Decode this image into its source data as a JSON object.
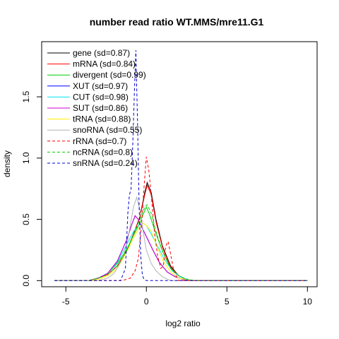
{
  "chart_data": {
    "type": "line",
    "title": "number read ratio WT.MMS/mre11.G1",
    "xlabel": "log2 ratio",
    "ylabel": "density",
    "xlim": [
      -6.5,
      10.6
    ],
    "ylim": [
      -0.05,
      1.95
    ],
    "xticks": [
      -5,
      0,
      5,
      10
    ],
    "yticks": [
      0.0,
      0.5,
      1.0,
      1.5
    ],
    "grid": false,
    "legend_position": "top-left",
    "series": [
      {
        "name": "gene (sd=0.87)",
        "color": "#000000",
        "dash": "solid",
        "x": [
          -5.7,
          -3.6,
          -3.0,
          -2.4,
          -1.8,
          -1.2,
          -0.8,
          -0.4,
          -0.1,
          0.05,
          0.3,
          0.6,
          1.0,
          1.5,
          2.0,
          2.5,
          3.0,
          10.0
        ],
        "y": [
          0.0,
          0.0,
          0.02,
          0.05,
          0.12,
          0.25,
          0.38,
          0.52,
          0.72,
          0.8,
          0.72,
          0.5,
          0.28,
          0.12,
          0.04,
          0.01,
          0.0,
          0.0
        ]
      },
      {
        "name": "mRNA (sd=0.84)",
        "color": "#ff0000",
        "dash": "solid",
        "x": [
          -5.7,
          -3.6,
          -3.0,
          -2.4,
          -1.8,
          -1.2,
          -0.8,
          -0.4,
          -0.1,
          0.05,
          0.3,
          0.6,
          1.0,
          1.5,
          2.0,
          2.5,
          3.0,
          10.0
        ],
        "y": [
          0.0,
          0.0,
          0.02,
          0.05,
          0.12,
          0.25,
          0.38,
          0.52,
          0.7,
          0.78,
          0.7,
          0.48,
          0.27,
          0.11,
          0.04,
          0.01,
          0.0,
          0.0
        ]
      },
      {
        "name": "divergent (sd=0.99)",
        "color": "#00cd00",
        "dash": "solid",
        "x": [
          -5.7,
          -3.6,
          -3.0,
          -2.4,
          -1.8,
          -1.2,
          -0.8,
          -0.4,
          -0.2,
          0.0,
          0.2,
          0.5,
          1.0,
          1.5,
          2.0,
          2.5,
          3.0,
          10.0
        ],
        "y": [
          0.0,
          0.0,
          0.02,
          0.06,
          0.14,
          0.26,
          0.37,
          0.47,
          0.54,
          0.6,
          0.54,
          0.42,
          0.24,
          0.1,
          0.04,
          0.01,
          0.0,
          0.0
        ]
      },
      {
        "name": "XUT (sd=0.97)",
        "color": "#0000ff",
        "dash": "solid",
        "x": [
          -5.7,
          -3.6,
          -3.0,
          -2.4,
          -1.8,
          -1.2,
          -0.9,
          -0.7,
          -0.5,
          -0.3,
          0.0,
          0.4,
          0.8,
          1.3,
          1.8,
          2.3,
          2.8,
          10.0
        ],
        "y": [
          0.0,
          0.0,
          0.02,
          0.06,
          0.16,
          0.34,
          0.46,
          0.53,
          0.5,
          0.44,
          0.36,
          0.25,
          0.15,
          0.07,
          0.03,
          0.01,
          0.0,
          0.0
        ]
      },
      {
        "name": "CUT (sd=0.98)",
        "color": "#00e5ee",
        "dash": "solid",
        "x": [
          -5.7,
          -3.6,
          -3.0,
          -2.4,
          -1.8,
          -1.2,
          -0.8,
          -0.5,
          -0.2,
          0.0,
          0.3,
          0.7,
          1.1,
          1.6,
          2.1,
          2.6,
          3.0,
          10.0
        ],
        "y": [
          0.0,
          0.0,
          0.02,
          0.06,
          0.15,
          0.3,
          0.4,
          0.45,
          0.47,
          0.45,
          0.38,
          0.28,
          0.18,
          0.08,
          0.03,
          0.01,
          0.0,
          0.0
        ]
      },
      {
        "name": "SUT (sd=0.86)",
        "color": "#cc00cc",
        "dash": "solid",
        "x": [
          -5.7,
          -3.6,
          -3.0,
          -2.4,
          -1.8,
          -1.2,
          -0.9,
          -0.7,
          -0.5,
          -0.3,
          0.0,
          0.4,
          0.8,
          1.3,
          1.8,
          2.3,
          2.8,
          10.0
        ],
        "y": [
          0.0,
          0.0,
          0.02,
          0.06,
          0.16,
          0.34,
          0.46,
          0.53,
          0.5,
          0.44,
          0.36,
          0.25,
          0.15,
          0.07,
          0.03,
          0.01,
          0.0,
          0.0
        ]
      },
      {
        "name": "tRNA (sd=0.88)",
        "color": "#ffee00",
        "dash": "solid",
        "x": [
          -5.7,
          -3.6,
          -3.0,
          -2.4,
          -1.8,
          -1.2,
          -0.8,
          -0.5,
          -0.2,
          0.0,
          0.3,
          0.6,
          1.0,
          1.5,
          2.0,
          2.5,
          3.0,
          10.0
        ],
        "y": [
          0.0,
          0.0,
          0.01,
          0.04,
          0.1,
          0.24,
          0.35,
          0.42,
          0.47,
          0.45,
          0.4,
          0.3,
          0.17,
          0.07,
          0.02,
          0.01,
          0.0,
          0.0
        ]
      },
      {
        "name": "snoRNA (sd=0.55)",
        "color": "#b3b3b3",
        "dash": "solid",
        "x": [
          -5.7,
          -3.0,
          -2.4,
          -2.0,
          -1.6,
          -1.4,
          -1.2,
          -1.0,
          -0.8,
          -0.6,
          -0.4,
          -0.2,
          0.0,
          0.3,
          0.6,
          1.0,
          1.5,
          10.0
        ],
        "y": [
          0.0,
          0.0,
          0.02,
          0.06,
          0.15,
          0.22,
          0.3,
          0.45,
          0.6,
          0.68,
          0.58,
          0.4,
          0.25,
          0.14,
          0.08,
          0.03,
          0.0,
          0.0
        ]
      },
      {
        "name": "rRNA (sd=0.7)",
        "color": "#ff0000",
        "dash": "dashed",
        "x": [
          -5.7,
          -1.5,
          -1.0,
          -0.7,
          -0.5,
          -0.3,
          -0.15,
          0.0,
          0.15,
          0.3,
          0.5,
          0.7,
          0.9,
          1.05,
          1.2,
          1.35,
          1.5,
          1.7,
          2.0,
          10.0
        ],
        "y": [
          0.0,
          0.0,
          0.02,
          0.08,
          0.18,
          0.45,
          0.75,
          1.01,
          0.9,
          0.7,
          0.4,
          0.2,
          0.1,
          0.12,
          0.28,
          0.32,
          0.22,
          0.08,
          0.0,
          0.0
        ]
      },
      {
        "name": "ncRNA (sd=0.8)",
        "color": "#00cd00",
        "dash": "dashed",
        "x": [
          -5.7,
          -3.6,
          -3.0,
          -2.4,
          -1.8,
          -1.2,
          -0.8,
          -0.4,
          -0.1,
          0.05,
          0.3,
          0.6,
          1.0,
          1.5,
          2.0,
          2.5,
          3.0,
          10.0
        ],
        "y": [
          0.0,
          0.0,
          0.02,
          0.05,
          0.12,
          0.25,
          0.37,
          0.5,
          0.6,
          0.62,
          0.55,
          0.4,
          0.24,
          0.1,
          0.04,
          0.01,
          0.0,
          0.0
        ]
      },
      {
        "name": "snRNA (sd=0.24)",
        "color": "#0000cd",
        "dash": "dashed",
        "x": [
          -5.7,
          -1.6,
          -1.3,
          -1.15,
          -1.05,
          -0.95,
          -0.85,
          -0.75,
          -0.65,
          -0.55,
          -0.45,
          -0.35,
          -0.25,
          -0.15,
          0.0,
          10.0
        ],
        "y": [
          0.0,
          0.0,
          0.1,
          0.55,
          0.7,
          0.75,
          1.1,
          1.5,
          1.88,
          1.3,
          0.6,
          0.2,
          0.05,
          0.01,
          0.0,
          0.0
        ]
      }
    ]
  }
}
